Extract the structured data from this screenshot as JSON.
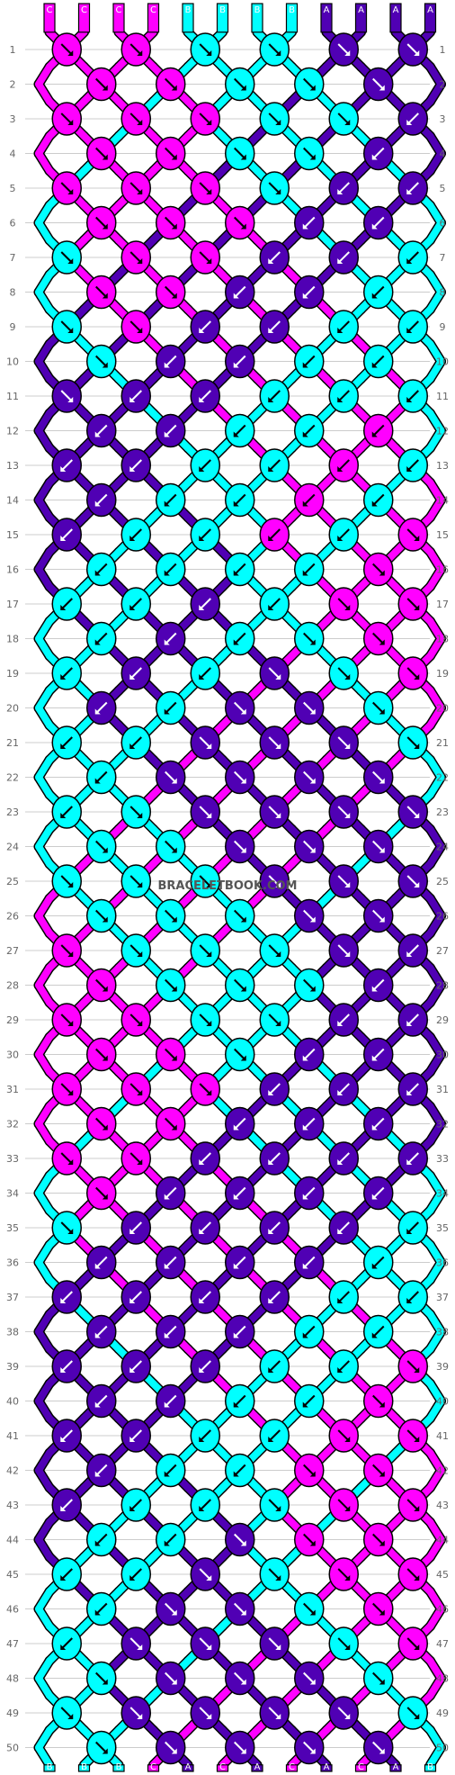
{
  "watermark": "BRACELETBOOK.COM",
  "colors": {
    "C": "#ff00ff",
    "B": "#00ffff",
    "A": "#5000b4"
  },
  "columns": [
    "C",
    "C",
    "C",
    "C",
    "B",
    "B",
    "B",
    "B",
    "A",
    "A",
    "A",
    "A"
  ],
  "rows": [
    "1",
    "2",
    "3",
    "4",
    "5",
    "6",
    "7",
    "8",
    "9",
    "10",
    "11",
    "12",
    "13",
    "14",
    "15",
    "16",
    "17",
    "18",
    "19",
    "20",
    "21",
    "22",
    "23",
    "24",
    "25",
    "26",
    "27",
    "28",
    "29",
    "30",
    "31",
    "32",
    "33",
    "34",
    "35",
    "36",
    "37",
    "38",
    "39",
    "40",
    "41",
    "42",
    "43",
    "44",
    "45",
    "46",
    "47",
    "48",
    "49",
    "50"
  ],
  "rows_total": 50,
  "strands": 12,
  "cycle_rows": 48
}
